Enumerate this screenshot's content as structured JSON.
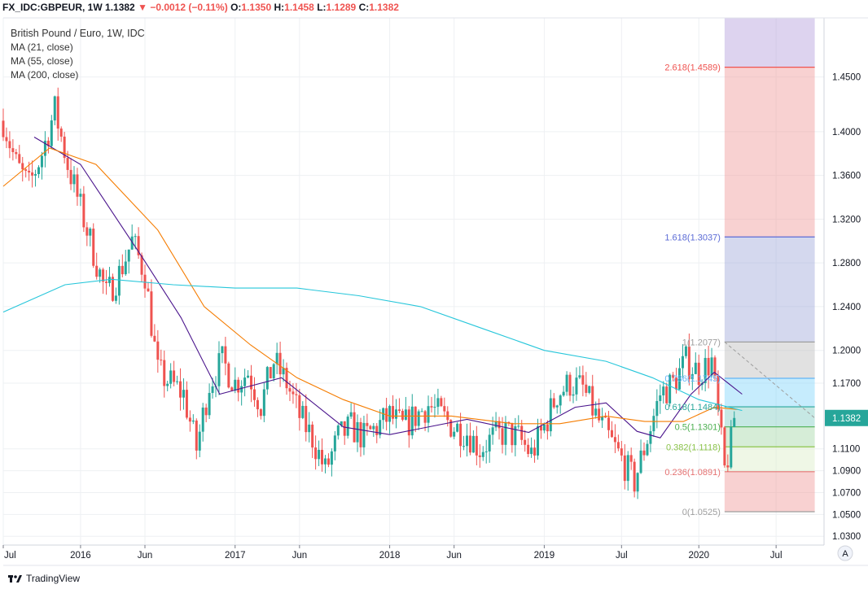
{
  "header": {
    "symbol": "FX_IDC:GBPEUR, 1W",
    "last": "1.1382",
    "change_arrow": "▼",
    "change": "−0.0012 (−0.11%)",
    "o_label": "O:",
    "o": "1.1350",
    "h_label": "H:",
    "h": "1.1458",
    "l_label": "L:",
    "l": "1.1289",
    "c_label": "C:",
    "c": "1.1382"
  },
  "legend": {
    "title": "British Pound / Euro, 1W, IDC",
    "ma21": "MA (21, close)",
    "ma55": "MA (55, close)",
    "ma200": "MA (200, close)"
  },
  "brand": "TradingView",
  "auto_button": "A",
  "colors": {
    "up": "#26a69a",
    "down": "#ef5350",
    "ma21": "#4a148c",
    "ma55": "#f57c00",
    "ma200": "#26c6da"
  },
  "chart_data": {
    "type": "candlestick",
    "title": "British Pound / Euro, 1W, IDC",
    "ylim": [
      1.022,
      1.504
    ],
    "x_tick_labels": [
      "Jul",
      "2016",
      "Jun",
      "2017",
      "Jun",
      "2018",
      "Jun",
      "2019",
      "Jul",
      "2020",
      "Jul"
    ],
    "x_tick_dates": [
      "2015-07",
      "2016-01",
      "2016-06",
      "2017-01",
      "2017-06",
      "2018-01",
      "2018-06",
      "2019-01",
      "2019-07",
      "2020-01",
      "2020-07"
    ],
    "y_ticks": [
      "1.4500",
      "1.4000",
      "1.3600",
      "1.3200",
      "1.2800",
      "1.2400",
      "1.2000",
      "1.1700",
      "1.1100",
      "1.0900",
      "1.0700",
      "1.0500",
      "1.0300"
    ],
    "y_tick_values": [
      1.45,
      1.4,
      1.36,
      1.32,
      1.28,
      1.24,
      1.2,
      1.17,
      1.11,
      1.09,
      1.07,
      1.05,
      1.03
    ],
    "current_price": "1.1382",
    "current_value": 1.1382,
    "anchors": [
      {
        "date": "2015-07",
        "close": 1.41
      },
      {
        "date": "2015-08",
        "close": 1.37
      },
      {
        "date": "2015-09",
        "close": 1.35
      },
      {
        "date": "2015-10",
        "close": 1.38
      },
      {
        "date": "2015-11",
        "close": 1.42
      },
      {
        "date": "2015-12",
        "close": 1.37
      },
      {
        "date": "2016-01",
        "close": 1.33
      },
      {
        "date": "2016-02",
        "close": 1.29
      },
      {
        "date": "2016-03",
        "close": 1.25
      },
      {
        "date": "2016-04",
        "close": 1.27
      },
      {
        "date": "2016-05",
        "close": 1.3
      },
      {
        "date": "2016-06",
        "close": 1.27
      },
      {
        "date": "2016-07",
        "close": 1.18
      },
      {
        "date": "2016-08",
        "close": 1.17
      },
      {
        "date": "2016-09",
        "close": 1.16
      },
      {
        "date": "2016-10",
        "close": 1.11
      },
      {
        "date": "2016-11",
        "close": 1.17
      },
      {
        "date": "2016-12",
        "close": 1.19
      },
      {
        "date": "2017-01",
        "close": 1.17
      },
      {
        "date": "2017-02",
        "close": 1.18
      },
      {
        "date": "2017-03",
        "close": 1.15
      },
      {
        "date": "2017-04",
        "close": 1.19
      },
      {
        "date": "2017-05",
        "close": 1.17
      },
      {
        "date": "2017-06",
        "close": 1.14
      },
      {
        "date": "2017-07",
        "close": 1.12
      },
      {
        "date": "2017-08",
        "close": 1.09
      },
      {
        "date": "2017-09",
        "close": 1.12
      },
      {
        "date": "2017-10",
        "close": 1.13
      },
      {
        "date": "2017-11",
        "close": 1.12
      },
      {
        "date": "2017-12",
        "close": 1.13
      },
      {
        "date": "2018-01",
        "close": 1.14
      },
      {
        "date": "2018-02",
        "close": 1.13
      },
      {
        "date": "2018-03",
        "close": 1.14
      },
      {
        "date": "2018-04",
        "close": 1.15
      },
      {
        "date": "2018-05",
        "close": 1.14
      },
      {
        "date": "2018-06",
        "close": 1.13
      },
      {
        "date": "2018-07",
        "close": 1.125
      },
      {
        "date": "2018-08",
        "close": 1.11
      },
      {
        "date": "2018-09",
        "close": 1.12
      },
      {
        "date": "2018-10",
        "close": 1.125
      },
      {
        "date": "2018-11",
        "close": 1.12
      },
      {
        "date": "2018-12",
        "close": 1.105
      },
      {
        "date": "2019-01",
        "close": 1.13
      },
      {
        "date": "2019-02",
        "close": 1.16
      },
      {
        "date": "2019-03",
        "close": 1.17
      },
      {
        "date": "2019-04",
        "close": 1.165
      },
      {
        "date": "2019-05",
        "close": 1.14
      },
      {
        "date": "2019-06",
        "close": 1.12
      },
      {
        "date": "2019-07",
        "close": 1.1
      },
      {
        "date": "2019-08",
        "close": 1.08
      },
      {
        "date": "2019-09",
        "close": 1.12
      },
      {
        "date": "2019-10",
        "close": 1.16
      },
      {
        "date": "2019-11",
        "close": 1.17
      },
      {
        "date": "2019-12",
        "close": 1.19
      },
      {
        "date": "2020-01",
        "close": 1.18
      },
      {
        "date": "2020-02",
        "close": 1.19
      },
      {
        "date": "2020-03",
        "close": 1.09
      },
      {
        "date": "2020-04",
        "close": 1.14
      }
    ],
    "moving_averages": [
      {
        "name": "MA (21, close)",
        "points": [
          [
            2015.7,
            1.395
          ],
          [
            2016.0,
            1.37
          ],
          [
            2016.4,
            1.285
          ],
          [
            2016.65,
            1.23
          ],
          [
            2016.9,
            1.16
          ],
          [
            2017.3,
            1.175
          ],
          [
            2017.7,
            1.13
          ],
          [
            2018.0,
            1.123
          ],
          [
            2018.5,
            1.137
          ],
          [
            2018.9,
            1.125
          ],
          [
            2019.2,
            1.148
          ],
          [
            2019.4,
            1.152
          ],
          [
            2019.6,
            1.126
          ],
          [
            2019.75,
            1.12
          ],
          [
            2019.95,
            1.16
          ],
          [
            2020.1,
            1.18
          ],
          [
            2020.28,
            1.16
          ]
        ]
      },
      {
        "name": "MA (55, close)",
        "points": [
          [
            2015.5,
            1.35
          ],
          [
            2015.8,
            1.385
          ],
          [
            2016.1,
            1.37
          ],
          [
            2016.5,
            1.31
          ],
          [
            2016.8,
            1.24
          ],
          [
            2017.1,
            1.205
          ],
          [
            2017.4,
            1.175
          ],
          [
            2017.7,
            1.155
          ],
          [
            2018.0,
            1.14
          ],
          [
            2018.4,
            1.14
          ],
          [
            2018.8,
            1.133
          ],
          [
            2019.1,
            1.133
          ],
          [
            2019.4,
            1.14
          ],
          [
            2019.65,
            1.135
          ],
          [
            2019.9,
            1.135
          ],
          [
            2020.1,
            1.148
          ],
          [
            2020.25,
            1.146
          ]
        ]
      },
      {
        "name": "MA (200, close)",
        "points": [
          [
            2015.5,
            1.235
          ],
          [
            2015.9,
            1.26
          ],
          [
            2016.2,
            1.265
          ],
          [
            2016.6,
            1.26
          ],
          [
            2017.0,
            1.257
          ],
          [
            2017.4,
            1.257
          ],
          [
            2017.8,
            1.25
          ],
          [
            2018.2,
            1.24
          ],
          [
            2018.6,
            1.22
          ],
          [
            2019.0,
            1.2
          ],
          [
            2019.4,
            1.19
          ],
          [
            2019.7,
            1.175
          ],
          [
            2020.0,
            1.155
          ],
          [
            2020.28,
            1.145
          ]
        ]
      }
    ],
    "fibonacci": {
      "start_date": "2020-03",
      "end_date": "2020-10",
      "levels": [
        {
          "label": "2.618(1.4589)",
          "value": 1.4589,
          "color": "#ef5350"
        },
        {
          "label": "1.618(1.3037)",
          "value": 1.3037,
          "color": "#5b6bd6"
        },
        {
          "label": "1(1.2077)",
          "value": 1.2077,
          "color": "#9e9e9e"
        },
        {
          "label": "0.786(1.1745)",
          "value": 1.1745,
          "color": "#64b5f6"
        },
        {
          "label": "0.618(1.1484)",
          "value": 1.1484,
          "color": "#26a69a"
        },
        {
          "label": "0.5(1.1301)",
          "value": 1.1301,
          "color": "#4caf50"
        },
        {
          "label": "0.382(1.1118)",
          "value": 1.1118,
          "color": "#8bc34a"
        },
        {
          "label": "0.236(1.0891)",
          "value": 1.0891,
          "color": "#e57373"
        },
        {
          "label": "0(1.0525)",
          "value": 1.0525,
          "color": "#9e9e9e"
        }
      ],
      "bands": [
        {
          "from": 1.4589,
          "to": 1.504,
          "color": "#b39ddb"
        },
        {
          "from": 1.3037,
          "to": 1.4589,
          "color": "#ef9a9a"
        },
        {
          "from": 1.2077,
          "to": 1.3037,
          "color": "#9fa8da"
        },
        {
          "from": 1.1745,
          "to": 1.2077,
          "color": "#bdbdbd"
        },
        {
          "from": 1.1484,
          "to": 1.1745,
          "color": "#81d4fa"
        },
        {
          "from": 1.1301,
          "to": 1.1484,
          "color": "#80cbc4"
        },
        {
          "from": 1.1118,
          "to": 1.1301,
          "color": "#a5d6a7"
        },
        {
          "from": 1.0891,
          "to": 1.1118,
          "color": "#dcedc8"
        },
        {
          "from": 1.0525,
          "to": 1.0891,
          "color": "#ef9a9a"
        }
      ]
    }
  }
}
